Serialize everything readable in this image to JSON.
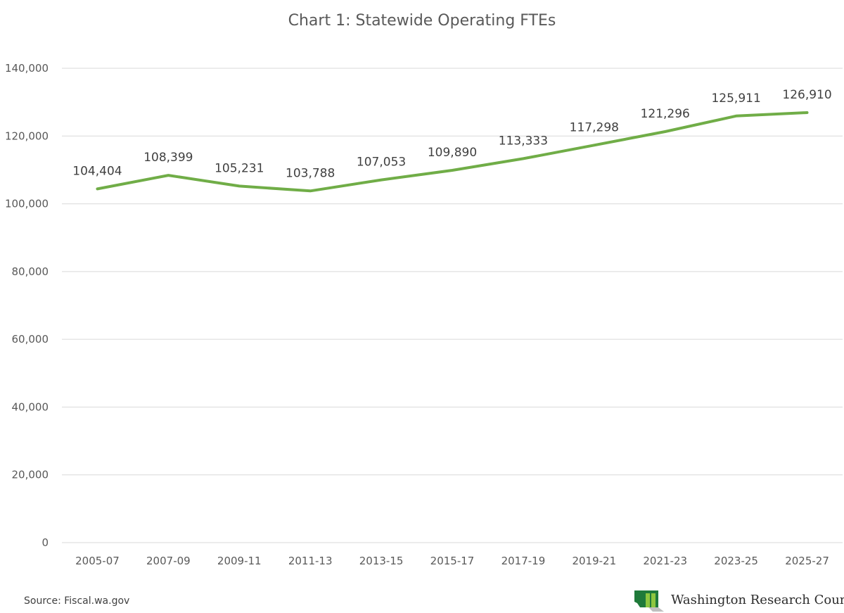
{
  "source": "Source: Fiscal.wa.gov",
  "brand": {
    "name": "Washington Research Council",
    "logo_icon": "washington-state-logo-icon",
    "logo_colors": [
      "#1f7a3a",
      "#8dc63f",
      "#bfbfbf"
    ]
  },
  "colors": {
    "line": "#70ad47",
    "grid": "#d9d9d9",
    "text": "#595959"
  },
  "chart_data": {
    "type": "line",
    "title": "Chart 1: Statewide Operating FTEs",
    "categories": [
      "2005-07",
      "2007-09",
      "2009-11",
      "2011-13",
      "2013-15",
      "2015-17",
      "2017-19",
      "2019-21",
      "2021-23",
      "2023-25",
      "2025-27"
    ],
    "values": [
      104404,
      108399,
      105231,
      103788,
      107053,
      109890,
      113333,
      117298,
      121296,
      125911,
      126910
    ],
    "data_labels": [
      "104,404",
      "108,399",
      "105,231",
      "103,788",
      "107,053",
      "109,890",
      "113,333",
      "117,298",
      "121,296",
      "125,911",
      "126,910"
    ],
    "yticks": [
      0,
      20000,
      40000,
      60000,
      80000,
      100000,
      120000,
      140000
    ],
    "ytick_labels": [
      "0",
      "20,000",
      "40,000",
      "60,000",
      "80,000",
      "100,000",
      "120,000",
      "140,000"
    ],
    "ylim": [
      0,
      140000
    ],
    "grid": true,
    "legend": "none",
    "xlabel": "",
    "ylabel": ""
  }
}
